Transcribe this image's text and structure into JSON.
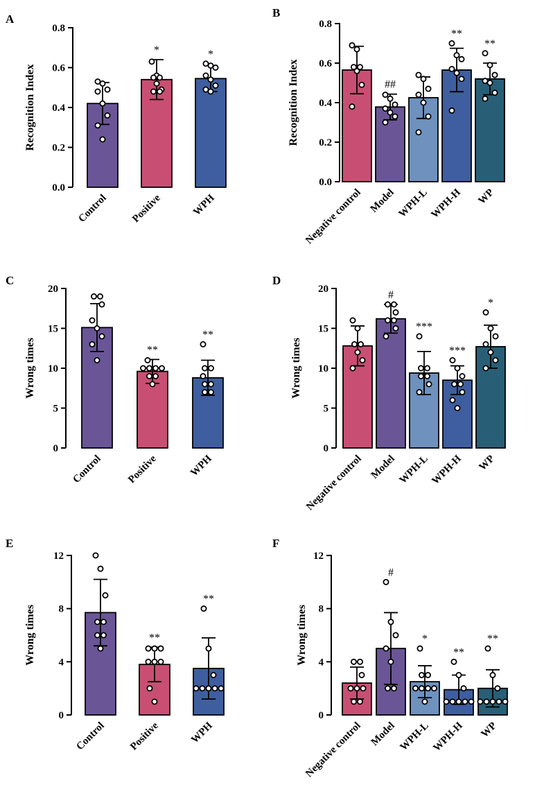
{
  "figure": {
    "colors": {
      "Control": "#6A5696",
      "Positive": "#C84F73",
      "WPH": "#3F5E9F",
      "Negative control": "#C84F73",
      "Model": "#6A5696",
      "WPH-L": "#6E91BE",
      "WPH-H": "#3F5E9F",
      "WP": "#285F77"
    }
  },
  "chart_data": [
    {
      "panel": "A",
      "type": "bar",
      "ylabel": "Recognition Index",
      "ylim": [
        0,
        0.8
      ],
      "yticks": [
        "0.0",
        "0.2",
        "0.4",
        "0.6",
        "0.8"
      ],
      "ytick_values": [
        0,
        0.2,
        0.4,
        0.6,
        0.8
      ],
      "categories": [
        "Control",
        "Positive",
        "WPH"
      ],
      "values": [
        0.42,
        0.54,
        0.545
      ],
      "errors": [
        0.105,
        0.1,
        0.065
      ],
      "significance": [
        "",
        "*",
        "*"
      ],
      "points": [
        [
          0.53,
          0.52,
          0.49,
          0.48,
          0.42,
          0.36,
          0.31,
          0.24
        ],
        [
          0.63,
          0.56,
          0.55,
          0.55,
          0.52,
          0.49,
          0.48,
          0.48
        ],
        [
          0.62,
          0.61,
          0.6,
          0.56,
          0.54,
          0.51,
          0.49,
          0.48
        ]
      ],
      "rotate_labels": true
    },
    {
      "panel": "B",
      "type": "bar",
      "ylabel": "Recognition Index",
      "ylim": [
        0,
        0.8
      ],
      "yticks": [
        "0.0",
        "0.2",
        "0.4",
        "0.6",
        "0.8"
      ],
      "ytick_values": [
        0,
        0.2,
        0.4,
        0.6,
        0.8
      ],
      "categories": [
        "Negative control",
        "Model",
        "WPH-L",
        "WPH-H",
        "WP"
      ],
      "values": [
        0.565,
        0.378,
        0.425,
        0.565,
        0.52
      ],
      "errors": [
        0.12,
        0.065,
        0.105,
        0.11,
        0.08
      ],
      "significance": [
        "",
        "##",
        "",
        "**",
        "**"
      ],
      "points": [
        [
          0.69,
          0.67,
          0.58,
          0.58,
          0.56,
          0.49,
          0.38
        ],
        [
          0.44,
          0.42,
          0.39,
          0.37,
          0.35,
          0.33,
          0.3
        ],
        [
          0.54,
          0.52,
          0.47,
          0.44,
          0.4,
          0.33,
          0.25
        ],
        [
          0.7,
          0.64,
          0.62,
          0.57,
          0.55,
          0.52,
          0.36
        ],
        [
          0.65,
          0.59,
          0.54,
          0.51,
          0.5,
          0.45,
          0.42
        ]
      ],
      "rotate_labels": true
    },
    {
      "panel": "C",
      "type": "bar",
      "ylabel": "Wrong times",
      "ylim": [
        0,
        20
      ],
      "yticks": [
        "0",
        "5",
        "10",
        "15",
        "20"
      ],
      "ytick_values": [
        0,
        5,
        10,
        15,
        20
      ],
      "categories": [
        "Control",
        "Positive",
        "WPH"
      ],
      "values": [
        15.1,
        9.6,
        8.8
      ],
      "errors": [
        3.0,
        1.5,
        2.2
      ],
      "significance": [
        "",
        "**",
        "**"
      ],
      "points": [
        [
          19,
          19,
          18,
          16,
          15,
          14,
          13,
          11
        ],
        [
          11,
          10,
          10,
          10,
          10,
          9,
          9,
          8
        ],
        [
          13,
          10,
          10,
          9,
          8,
          8,
          7,
          7
        ]
      ],
      "rotate_labels": true
    },
    {
      "panel": "D",
      "type": "bar",
      "ylabel": "Wrong times",
      "ylim": [
        0,
        20
      ],
      "yticks": [
        "0",
        "5",
        "10",
        "15",
        "20"
      ],
      "ytick_values": [
        0,
        5,
        10,
        15,
        20
      ],
      "categories": [
        "Negative control",
        "Model",
        "WPH-L",
        "WPH-H",
        "WP"
      ],
      "values": [
        12.8,
        16.2,
        9.4,
        8.5,
        12.7
      ],
      "errors": [
        2.5,
        1.8,
        2.7,
        1.8,
        2.7
      ],
      "significance": [
        "",
        "#",
        "***",
        "***",
        "*"
      ],
      "points": [
        [
          16,
          15,
          13,
          13,
          12,
          11,
          10
        ],
        [
          18,
          18,
          17,
          16,
          16,
          15,
          14
        ],
        [
          14,
          10,
          10,
          9,
          9,
          8,
          7
        ],
        [
          11,
          10,
          9,
          8,
          8,
          7,
          6,
          5
        ],
        [
          17,
          15,
          14,
          13,
          12,
          11,
          10
        ]
      ],
      "rotate_labels": true
    },
    {
      "panel": "E",
      "type": "bar",
      "ylabel": "Wrong times",
      "ylim": [
        0,
        12
      ],
      "yticks": [
        "0",
        "4",
        "8",
        "12"
      ],
      "ytick_values": [
        0,
        4,
        8,
        12
      ],
      "categories": [
        "Control",
        "Positive",
        "WPH"
      ],
      "values": [
        7.7,
        3.8,
        3.5
      ],
      "errors": [
        2.5,
        1.3,
        2.3
      ],
      "significance": [
        "",
        "**",
        "**"
      ],
      "points": [
        [
          12,
          11,
          9,
          7,
          7,
          6,
          6,
          5
        ],
        [
          5,
          5,
          5,
          4,
          4,
          4,
          2,
          1
        ],
        [
          8,
          5,
          3,
          2,
          2,
          2,
          2,
          2
        ]
      ],
      "rotate_labels": true
    },
    {
      "panel": "F",
      "type": "bar",
      "ylabel": "Wrong times",
      "ylim": [
        0,
        12
      ],
      "yticks": [
        "0",
        "4",
        "8",
        "12"
      ],
      "ytick_values": [
        0,
        4,
        8,
        12
      ],
      "categories": [
        "Negative control",
        "Model",
        "WPH-L",
        "WPH-H",
        "WP"
      ],
      "values": [
        2.4,
        5.0,
        2.5,
        1.9,
        2.0
      ],
      "errors": [
        1.2,
        2.7,
        1.2,
        1.1,
        1.4
      ],
      "significance": [
        "",
        "#",
        "*",
        "**",
        "**"
      ],
      "points": [
        [
          4,
          4,
          3,
          2,
          2,
          2,
          1,
          1
        ],
        [
          10,
          7,
          6,
          5,
          4,
          2,
          2
        ],
        [
          5,
          3,
          3,
          2,
          2,
          2,
          2,
          1
        ],
        [
          4,
          3,
          2,
          1,
          1,
          1,
          1,
          1
        ],
        [
          5,
          3,
          2,
          1,
          1,
          1,
          1,
          1
        ]
      ],
      "rotate_labels": true
    }
  ]
}
